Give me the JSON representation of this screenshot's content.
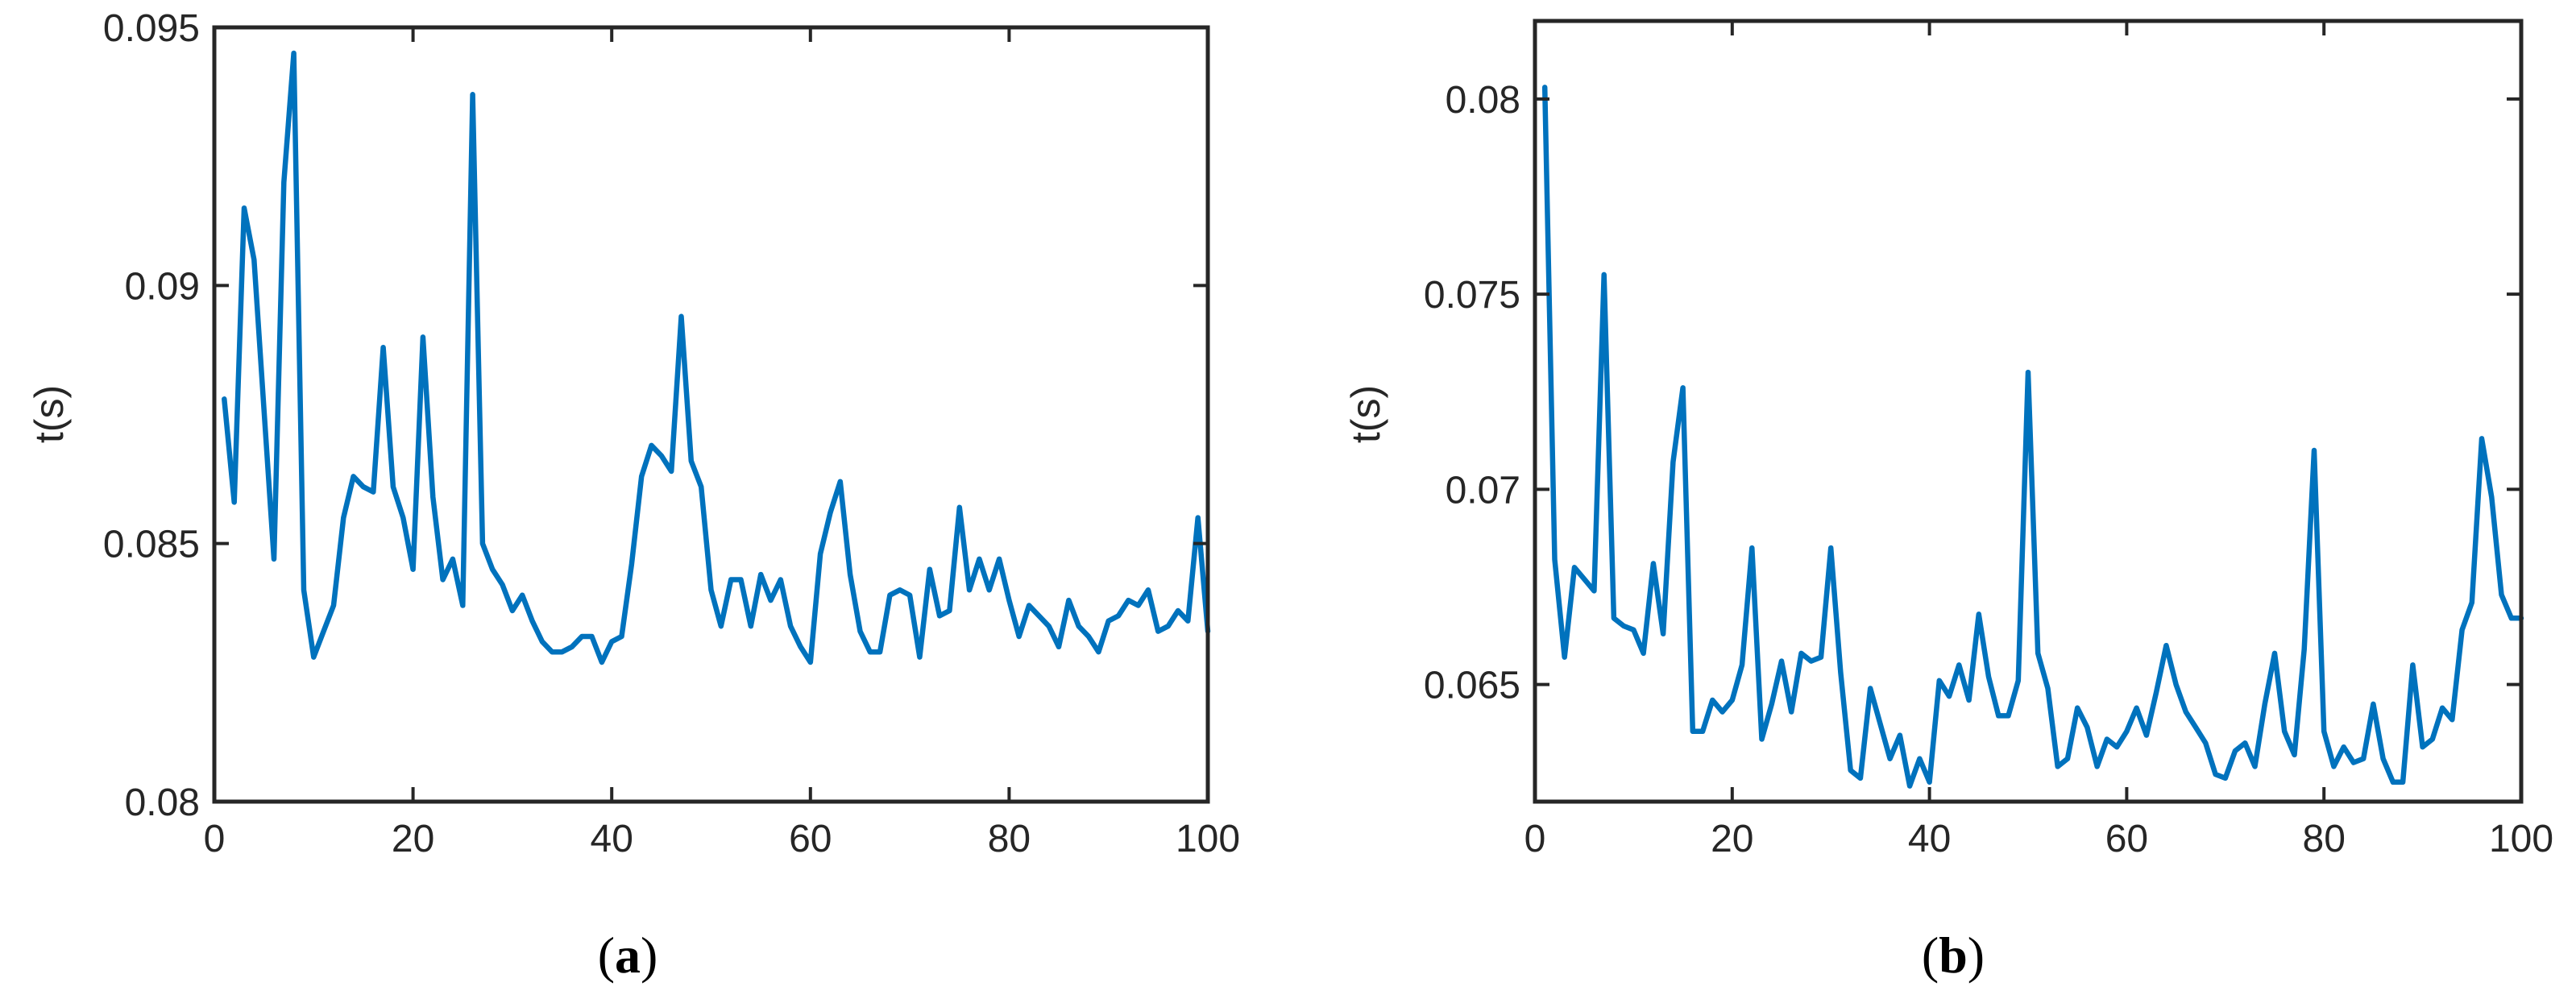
{
  "chart_data": [
    {
      "type": "line",
      "panel_caption": "a",
      "title": "",
      "xlabel": "",
      "ylabel": "t(s)",
      "xlim": [
        0,
        100
      ],
      "ylim": [
        0.08,
        0.095
      ],
      "x_ticks": [
        0,
        20,
        40,
        60,
        80,
        100
      ],
      "x_tick_labels": [
        "0",
        "20",
        "40",
        "60",
        "80",
        "100"
      ],
      "y_ticks": [
        0.08,
        0.085,
        0.09,
        0.095
      ],
      "y_tick_labels": [
        "0.08",
        "0.085",
        "0.09",
        "0.095"
      ],
      "grid": false,
      "line_color": "#0072BD",
      "x": [
        1,
        2,
        3,
        4,
        5,
        6,
        7,
        8,
        9,
        10,
        11,
        12,
        13,
        14,
        15,
        16,
        17,
        18,
        19,
        20,
        21,
        22,
        23,
        24,
        25,
        26,
        27,
        28,
        29,
        30,
        31,
        32,
        33,
        34,
        35,
        36,
        37,
        38,
        39,
        40,
        41,
        42,
        43,
        44,
        45,
        46,
        47,
        48,
        49,
        50,
        51,
        52,
        53,
        54,
        55,
        56,
        57,
        58,
        59,
        60,
        61,
        62,
        63,
        64,
        65,
        66,
        67,
        68,
        69,
        70,
        71,
        72,
        73,
        74,
        75,
        76,
        77,
        78,
        79,
        80,
        81,
        82,
        83,
        84,
        85,
        86,
        87,
        88,
        89,
        90,
        91,
        92,
        93,
        94,
        95,
        96,
        97,
        98,
        99,
        100
      ],
      "values": [
        0.0878,
        0.0858,
        0.0915,
        0.0905,
        0.0876,
        0.0847,
        0.092,
        0.0945,
        0.0841,
        0.0828,
        0.0833,
        0.0838,
        0.0855,
        0.0863,
        0.0861,
        0.086,
        0.0888,
        0.0861,
        0.0855,
        0.0845,
        0.089,
        0.0859,
        0.0843,
        0.0847,
        0.0838,
        0.0937,
        0.085,
        0.0845,
        0.0842,
        0.0837,
        0.084,
        0.0835,
        0.0831,
        0.0829,
        0.0829,
        0.083,
        0.0832,
        0.0832,
        0.0827,
        0.0831,
        0.0832,
        0.0846,
        0.0863,
        0.0869,
        0.0867,
        0.0864,
        0.0894,
        0.0866,
        0.0861,
        0.0841,
        0.0834,
        0.0843,
        0.0843,
        0.0834,
        0.0844,
        0.0839,
        0.0843,
        0.0834,
        0.083,
        0.0827,
        0.0848,
        0.0856,
        0.0862,
        0.0844,
        0.0833,
        0.0829,
        0.0829,
        0.084,
        0.0841,
        0.084,
        0.0828,
        0.0845,
        0.0836,
        0.0837,
        0.0857,
        0.0841,
        0.0847,
        0.0841,
        0.0847,
        0.0839,
        0.0832,
        0.0838,
        0.0836,
        0.0834,
        0.083,
        0.0839,
        0.0834,
        0.0832,
        0.0829,
        0.0835,
        0.0836,
        0.0839,
        0.0838,
        0.0841,
        0.0833,
        0.0834,
        0.0837,
        0.0835,
        0.0855,
        0.0833
      ]
    },
    {
      "type": "line",
      "panel_caption": "b",
      "title": "",
      "xlabel": "",
      "ylabel": "t(s)",
      "xlim": [
        0,
        100
      ],
      "ylim": [
        0.062,
        0.082
      ],
      "x_ticks": [
        0,
        20,
        40,
        60,
        80,
        100
      ],
      "x_tick_labels": [
        "0",
        "20",
        "40",
        "60",
        "80",
        "100"
      ],
      "y_ticks": [
        0.065,
        0.07,
        0.075,
        0.08
      ],
      "y_tick_labels": [
        "0.065",
        "0.07",
        "0.075",
        "0.08"
      ],
      "grid": false,
      "line_color": "#0072BD",
      "x": [
        1,
        2,
        3,
        4,
        5,
        6,
        7,
        8,
        9,
        10,
        11,
        12,
        13,
        14,
        15,
        16,
        17,
        18,
        19,
        20,
        21,
        22,
        23,
        24,
        25,
        26,
        27,
        28,
        29,
        30,
        31,
        32,
        33,
        34,
        35,
        36,
        37,
        38,
        39,
        40,
        41,
        42,
        43,
        44,
        45,
        46,
        47,
        48,
        49,
        50,
        51,
        52,
        53,
        54,
        55,
        56,
        57,
        58,
        59,
        60,
        61,
        62,
        63,
        64,
        65,
        66,
        67,
        68,
        69,
        70,
        71,
        72,
        73,
        74,
        75,
        76,
        77,
        78,
        79,
        80,
        81,
        82,
        83,
        84,
        85,
        86,
        87,
        88,
        89,
        90,
        91,
        92,
        93,
        94,
        95,
        96,
        97,
        98,
        99,
        100
      ],
      "values": [
        0.0803,
        0.0682,
        0.0657,
        0.068,
        0.0677,
        0.0674,
        0.0755,
        0.0667,
        0.0665,
        0.0664,
        0.0658,
        0.0681,
        0.0663,
        0.0707,
        0.0726,
        0.0638,
        0.0638,
        0.0646,
        0.0643,
        0.0646,
        0.0655,
        0.0685,
        0.0636,
        0.0645,
        0.0656,
        0.0643,
        0.0658,
        0.0656,
        0.0657,
        0.0685,
        0.0653,
        0.0628,
        0.0626,
        0.0649,
        0.064,
        0.0631,
        0.0637,
        0.0624,
        0.0631,
        0.0625,
        0.0651,
        0.0647,
        0.0655,
        0.0646,
        0.0668,
        0.0652,
        0.0642,
        0.0642,
        0.0651,
        0.073,
        0.0658,
        0.0649,
        0.0629,
        0.0631,
        0.0644,
        0.0639,
        0.0629,
        0.0636,
        0.0634,
        0.0638,
        0.0644,
        0.0637,
        0.0648,
        0.066,
        0.065,
        0.0643,
        0.0639,
        0.0635,
        0.0627,
        0.0626,
        0.0633,
        0.0635,
        0.0629,
        0.0645,
        0.0658,
        0.0638,
        0.0632,
        0.0659,
        0.071,
        0.0638,
        0.0629,
        0.0634,
        0.063,
        0.0631,
        0.0645,
        0.0631,
        0.0625,
        0.0625,
        0.0655,
        0.0634,
        0.0636,
        0.0644,
        0.0641,
        0.0664,
        0.0671,
        0.0713,
        0.0698,
        0.0673,
        0.0667,
        0.0667
      ]
    }
  ]
}
